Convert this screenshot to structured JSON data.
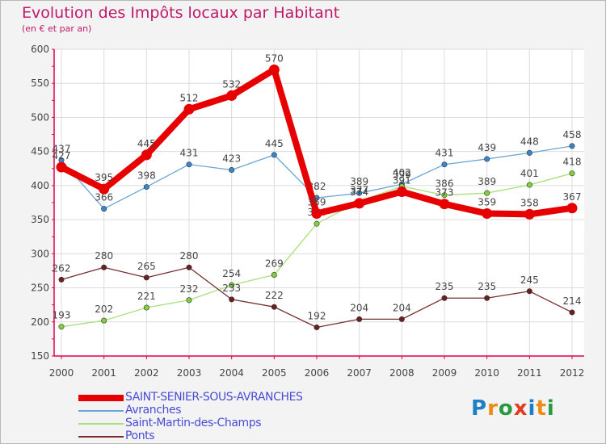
{
  "title": "Evolution des Impôts locaux par Habitant",
  "subtitle": "(en € et par an)",
  "logo": {
    "text": "Proxiti",
    "letters": [
      "P",
      "r",
      "o",
      "x",
      "i",
      "t",
      "i"
    ],
    "colors": [
      "#1f7fc6",
      "#f08a16",
      "#2b9a3f",
      "#e23b1e",
      "#1f7fc6",
      "#f08a16",
      "#2b9a3f"
    ]
  },
  "chart_data": {
    "type": "line",
    "title": "Evolution des Impôts locaux par Habitant",
    "subtitle": "(en € et par an)",
    "xlabel": "",
    "ylabel": "",
    "ylim": [
      150,
      600
    ],
    "yticks": [
      150,
      200,
      250,
      300,
      350,
      400,
      450,
      500,
      550,
      600
    ],
    "grid": true,
    "legend_position": "bottom-left",
    "categories": [
      "2000",
      "2001",
      "2002",
      "2003",
      "2004",
      "2005",
      "2006",
      "2007",
      "2008",
      "2009",
      "2010",
      "2011",
      "2012"
    ],
    "series": [
      {
        "name": "SAINT-SENIER-SOUS-AVRANCHES",
        "color": "#e60000",
        "bold": true,
        "values": [
          427,
          395,
          445,
          512,
          532,
          570,
          359,
          374,
          391,
          373,
          359,
          358,
          367
        ]
      },
      {
        "name": "Avranches",
        "color": "#6aa6d6",
        "marker": "#3a86cc",
        "bold": false,
        "values": [
          437,
          366,
          398,
          431,
          423,
          445,
          382,
          389,
          402,
          431,
          439,
          448,
          458
        ]
      },
      {
        "name": "Saint-Martin-des-Champs",
        "color": "#a8e07a",
        "marker": "#7fd13b",
        "bold": false,
        "values": [
          193,
          202,
          221,
          232,
          254,
          269,
          344,
          377,
          399,
          386,
          389,
          401,
          418
        ]
      },
      {
        "name": "Ponts",
        "color": "#7a2f2f",
        "marker": "#6b1f1f",
        "bold": false,
        "values": [
          262,
          280,
          265,
          280,
          233,
          222,
          192,
          204,
          204,
          235,
          235,
          245,
          214
        ]
      }
    ]
  }
}
